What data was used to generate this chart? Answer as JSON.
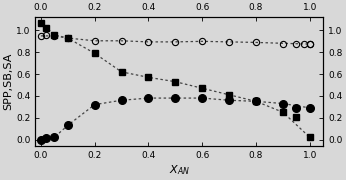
{
  "title": "",
  "xlabel": "$X_{AN}$",
  "ylabel": "SPP,SB,SA",
  "xlim": [
    -0.02,
    1.05
  ],
  "ylim": [
    -0.06,
    1.12
  ],
  "xticks": [
    0.0,
    0.2,
    0.4,
    0.6,
    0.8,
    1.0
  ],
  "yticks": [
    0.0,
    0.2,
    0.4,
    0.6,
    0.8,
    1.0
  ],
  "circles_x": [
    0.0,
    0.02,
    0.05,
    0.1,
    0.2,
    0.3,
    0.4,
    0.5,
    0.6,
    0.7,
    0.8,
    0.9,
    0.95,
    0.98,
    1.0,
    1.0
  ],
  "circles_y": [
    0.95,
    0.96,
    0.95,
    0.93,
    0.905,
    0.905,
    0.895,
    0.895,
    0.9,
    0.895,
    0.89,
    0.88,
    0.88,
    0.875,
    0.875,
    0.875
  ],
  "squares_x": [
    0.0,
    0.02,
    0.05,
    0.1,
    0.2,
    0.3,
    0.4,
    0.5,
    0.6,
    0.7,
    0.8,
    0.9,
    0.95,
    1.0
  ],
  "squares_y": [
    1.07,
    1.02,
    0.96,
    0.93,
    0.79,
    0.62,
    0.57,
    0.53,
    0.47,
    0.41,
    0.35,
    0.25,
    0.21,
    0.02
  ],
  "dots_x": [
    0.0,
    0.02,
    0.05,
    0.1,
    0.2,
    0.3,
    0.4,
    0.5,
    0.6,
    0.7,
    0.8,
    0.9,
    0.95,
    1.0
  ],
  "dots_y": [
    0.0,
    0.01,
    0.02,
    0.13,
    0.32,
    0.36,
    0.38,
    0.38,
    0.38,
    0.36,
    0.35,
    0.33,
    0.29,
    0.29
  ],
  "fit_circles_x": [
    0.0,
    0.05,
    0.1,
    0.2,
    0.3,
    0.4,
    0.5,
    0.6,
    0.7,
    0.8,
    0.9,
    1.0
  ],
  "fit_circles_y": [
    0.95,
    0.95,
    0.93,
    0.905,
    0.905,
    0.895,
    0.895,
    0.9,
    0.895,
    0.89,
    0.882,
    0.875
  ],
  "fit_squares_x": [
    0.0,
    0.05,
    0.1,
    0.2,
    0.3,
    0.4,
    0.5,
    0.6,
    0.7,
    0.8,
    0.9,
    1.0
  ],
  "fit_squares_y": [
    1.07,
    0.96,
    0.93,
    0.79,
    0.62,
    0.57,
    0.53,
    0.47,
    0.41,
    0.35,
    0.25,
    0.02
  ],
  "fit_dots_x": [
    0.0,
    0.05,
    0.1,
    0.2,
    0.3,
    0.4,
    0.5,
    0.6,
    0.7,
    0.8,
    0.9,
    1.0
  ],
  "fit_dots_y": [
    0.0,
    0.02,
    0.13,
    0.32,
    0.36,
    0.38,
    0.38,
    0.38,
    0.36,
    0.35,
    0.33,
    0.29
  ],
  "marker_size_circles": 4.5,
  "marker_size_squares": 5.0,
  "marker_size_dots": 5.5,
  "line_color": "#444444",
  "line_width": 0.9,
  "tick_label_fontsize": 6.5,
  "axis_label_fontsize": 8,
  "bg_color": "#d8d8d8"
}
